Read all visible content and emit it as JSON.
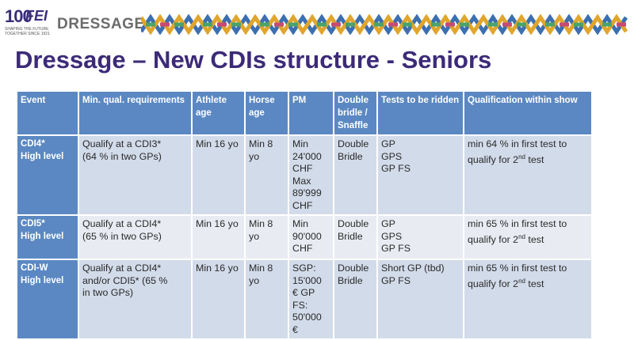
{
  "header": {
    "logo_number": "100",
    "logo_text": "FEI",
    "logo_tagline": "SHAPING THE FUTURE TOGETHER SINCE 1921",
    "discipline": "DRESSAGE"
  },
  "colors": {
    "title": "#3c2a78",
    "header_cell": "#5b88c2",
    "row_dark": "#d2dbe9",
    "row_light": "#e8ecf2"
  },
  "slide_title": "Dressage – New CDIs structure - Seniors",
  "table": {
    "columns": [
      "Event",
      "Min. qual. requirements",
      "Athlete age",
      "Horse age",
      "PM",
      "Double bridle / Snaffle",
      "Tests to be ridden",
      "Qualification within show"
    ],
    "rows": [
      {
        "event": "CDI4*\nHigh level",
        "requirements": "Qualify at a CDI3*\n(64 % in two GPs)",
        "athlete_age": "Min 16 yo",
        "horse_age": "Min 8\nyo",
        "pm": "Min\n24'000\nCHF\nMax\n89'999\nCHF",
        "bridle": "Double\nBridle",
        "tests": "GP\nGPS\nGP FS",
        "qualification": "min 64 % in first test to\nqualify for 2nd test"
      },
      {
        "event": "CDI5*\nHigh level",
        "requirements": "Qualify at a CDI4*\n(65 % in two GPs)",
        "athlete_age": "Min 16 yo",
        "horse_age": "Min 8\nyo",
        "pm": "Min\n90'000\nCHF",
        "bridle": "Double\nBridle",
        "tests": "GP\nGPS\nGP FS",
        "qualification": "min 65 % in first test to\nqualify for 2nd test"
      },
      {
        "event": "CDI-W\nHigh level",
        "requirements": "Qualify at a CDI4*\nand/or  CDI5* (65 %\nin two GPs)",
        "athlete_age": "Min 16 yo",
        "horse_age": "Min 8\nyo",
        "pm": "SGP:\n15'000\n€ GP\nFS:\n50'000\n€",
        "bridle": "Double\nBridle",
        "tests": "Short GP (tbd)\nGP FS",
        "qualification": "min 65 % in first test to\nqualify for 2nd test"
      }
    ]
  }
}
